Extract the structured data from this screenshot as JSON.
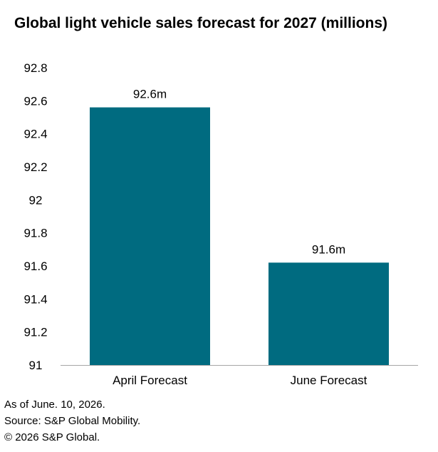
{
  "chart_data": {
    "type": "bar",
    "title": "Global light vehicle sales forecast for 2027 (millions)",
    "categories": [
      "April Forecast",
      "June Forecast"
    ],
    "values": [
      92.56,
      91.62
    ],
    "data_labels": [
      "92.6m",
      "91.6m"
    ],
    "ylim": [
      91,
      92.8
    ],
    "yticks": [
      "91",
      "91.2",
      "91.4",
      "91.6",
      "91.8",
      "92",
      "92.2",
      "92.4",
      "92.6",
      "92.8"
    ],
    "xlabel": "",
    "ylabel": "",
    "grid": false,
    "bar_color": "#006b80"
  },
  "footer": {
    "line1": "As of June. 10, 2026.",
    "line2": "Source: S&P Global Mobility.",
    "line3": "© 2026 S&P Global."
  }
}
